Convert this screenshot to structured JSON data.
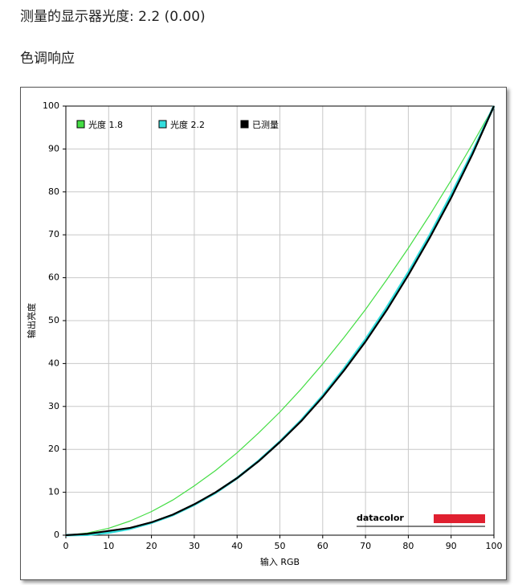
{
  "header": {
    "title": "测量的显示器光度:  2.2 (0.00)"
  },
  "section": {
    "title": "色调响应"
  },
  "chart_data": {
    "type": "line",
    "x_label": "输入 RGB",
    "y_label": "输出亮度",
    "logo": "datacolor",
    "x": [
      0,
      5,
      10,
      15,
      20,
      25,
      30,
      35,
      40,
      45,
      50,
      55,
      60,
      65,
      70,
      75,
      80,
      85,
      90,
      95,
      100
    ],
    "series": [
      {
        "name": "光度 1.8",
        "color": "#44dd44",
        "values": [
          0,
          0.5,
          1.6,
          3.3,
          5.5,
          8.2,
          11.5,
          15.1,
          19.2,
          23.8,
          28.7,
          34.1,
          39.9,
          46.1,
          52.6,
          59.6,
          66.9,
          74.6,
          82.7,
          91.2,
          100
        ]
      },
      {
        "name": "光度 2.2",
        "color": "#33dddd",
        "values": [
          0,
          0.1,
          0.6,
          1.5,
          2.9,
          4.7,
          7.1,
          9.9,
          13.3,
          17.3,
          21.8,
          26.8,
          32.5,
          38.8,
          45.6,
          53.1,
          61.2,
          69.9,
          79.3,
          89.3,
          100
        ]
      },
      {
        "name": "已测量",
        "color": "#000000",
        "values": [
          0,
          0.3,
          1.0,
          1.7,
          3.0,
          4.8,
          7.2,
          10.0,
          13.3,
          17.2,
          21.7,
          26.6,
          32.2,
          38.4,
          45.1,
          52.5,
          60.6,
          69.3,
          78.6,
          88.8,
          100
        ]
      }
    ],
    "xlim": [
      0,
      100
    ],
    "ylim": [
      0,
      100
    ],
    "xticks": [
      0,
      10,
      20,
      30,
      40,
      50,
      60,
      70,
      80,
      90,
      100
    ],
    "yticks": [
      0,
      10,
      20,
      30,
      40,
      50,
      60,
      70,
      80,
      90,
      100
    ],
    "grid": true,
    "legend": "upper left"
  }
}
